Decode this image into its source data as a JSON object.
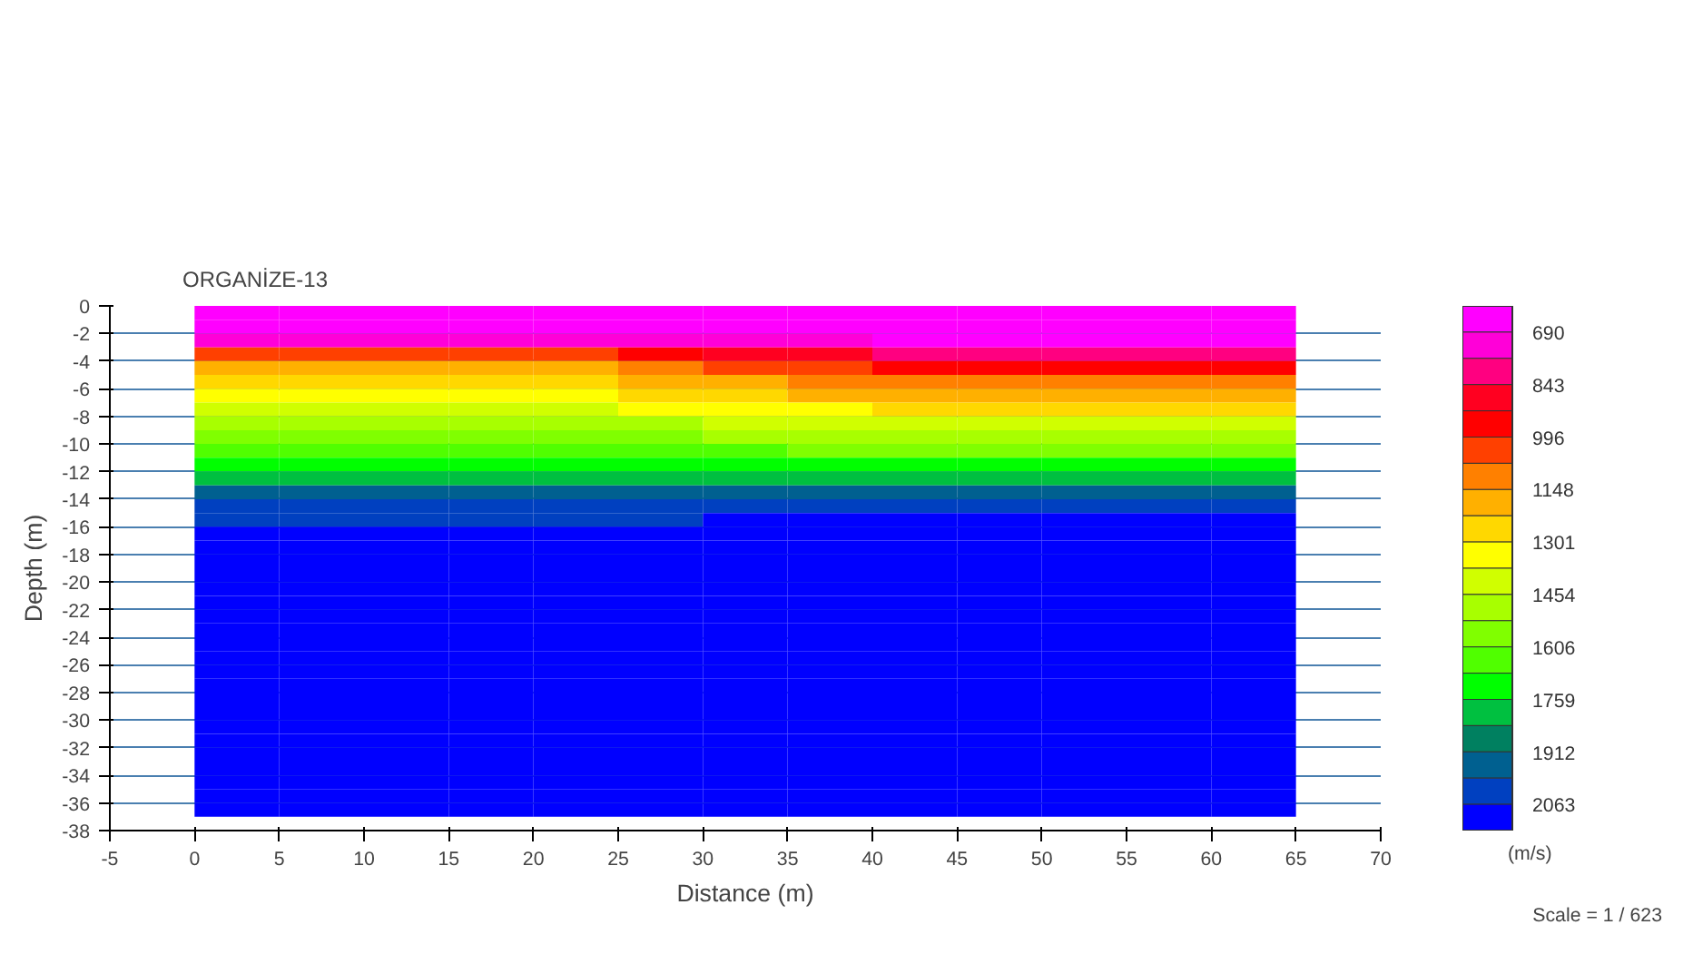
{
  "chart_data": {
    "type": "heatmap",
    "title": "ORGANİZE-13",
    "xlabel": "Distance (m)",
    "ylabel": "Depth (m)",
    "clabel": "(m/s)",
    "annotations": [
      "Scale = 1 / 623"
    ],
    "x": [
      2.5,
      7.5,
      12.5,
      17.5,
      22.5,
      27.5,
      32.5,
      37.5,
      42.5,
      47.5,
      52.5,
      57.5,
      62.5
    ],
    "y": [
      -0.5,
      -1.5,
      -2.5,
      -3.5,
      -4.5,
      -5.5,
      -6.5,
      -7.5,
      -8.5,
      -9.5,
      -10.5,
      -11.5,
      -12.5,
      -13.5,
      -14.5,
      -15.5,
      -16.5,
      -17.5,
      -18.5,
      -19.5,
      -20.5,
      -21.5,
      -22.5,
      -23.5,
      -24.5,
      -25.5,
      -26.5,
      -27.5,
      -28.5,
      -29.5,
      -30.5,
      -31.5,
      -32.5,
      -33.5,
      -34.5,
      -35.5,
      -36.5
    ],
    "cells": [
      [
        650,
        650,
        650,
        650,
        650,
        650,
        650,
        650,
        650,
        650,
        650,
        650,
        650
      ],
      [
        660,
        660,
        660,
        660,
        660,
        658,
        655,
        653,
        650,
        650,
        650,
        650,
        650
      ],
      [
        750,
        750,
        750,
        750,
        750,
        733,
        715,
        698,
        680,
        680,
        680,
        680,
        680
      ],
      [
        1000,
        1000,
        1000,
        1000,
        1000,
        950,
        900,
        850,
        800,
        800,
        800,
        800,
        800
      ],
      [
        1150,
        1150,
        1150,
        1150,
        1150,
        1100,
        1050,
        1000,
        950,
        950,
        950,
        950,
        950
      ],
      [
        1250,
        1250,
        1250,
        1250,
        1250,
        1208,
        1165,
        1123,
        1080,
        1080,
        1080,
        1080,
        1080
      ],
      [
        1330,
        1330,
        1330,
        1330,
        1330,
        1293,
        1255,
        1218,
        1180,
        1180,
        1180,
        1180,
        1180
      ],
      [
        1400,
        1400,
        1400,
        1400,
        1400,
        1373,
        1345,
        1318,
        1290,
        1290,
        1290,
        1290,
        1290
      ],
      [
        1470,
        1470,
        1470,
        1470,
        1470,
        1453,
        1435,
        1418,
        1400,
        1400,
        1400,
        1400,
        1400
      ],
      [
        1540,
        1540,
        1540,
        1540,
        1540,
        1530,
        1520,
        1510,
        1500,
        1500,
        1500,
        1500,
        1500
      ],
      [
        1620,
        1620,
        1620,
        1620,
        1620,
        1615,
        1610,
        1605,
        1600,
        1600,
        1600,
        1600,
        1600
      ],
      [
        1700,
        1700,
        1700,
        1700,
        1700,
        1700,
        1700,
        1700,
        1700,
        1700,
        1700,
        1700,
        1700
      ],
      [
        1830,
        1830,
        1830,
        1830,
        1830,
        1823,
        1815,
        1808,
        1800,
        1800,
        1800,
        1800,
        1800
      ],
      [
        1950,
        1950,
        1950,
        1950,
        1950,
        1945,
        1940,
        1935,
        1930,
        1930,
        1930,
        1930,
        1930
      ],
      [
        2020,
        2020,
        2020,
        2020,
        2020,
        2020,
        2020,
        2020,
        2020,
        2020,
        2020,
        2020,
        2020
      ],
      [
        2040,
        2040,
        2040,
        2040,
        2040,
        2055,
        2070,
        2085,
        2100,
        2100,
        2100,
        2100,
        2100
      ],
      [
        2120,
        2120,
        2120,
        2120,
        2120,
        2120,
        2120,
        2120,
        2120,
        2120,
        2120,
        2120,
        2120
      ],
      [
        2120,
        2120,
        2120,
        2120,
        2120,
        2120,
        2120,
        2120,
        2120,
        2120,
        2120,
        2120,
        2120
      ],
      [
        2120,
        2120,
        2120,
        2120,
        2120,
        2120,
        2120,
        2120,
        2120,
        2120,
        2120,
        2120,
        2120
      ],
      [
        2120,
        2120,
        2120,
        2120,
        2120,
        2120,
        2120,
        2120,
        2120,
        2120,
        2120,
        2120,
        2120
      ],
      [
        2120,
        2120,
        2120,
        2120,
        2120,
        2120,
        2120,
        2120,
        2120,
        2120,
        2120,
        2120,
        2120
      ],
      [
        2120,
        2120,
        2120,
        2120,
        2120,
        2120,
        2120,
        2120,
        2120,
        2120,
        2120,
        2120,
        2120
      ],
      [
        2120,
        2120,
        2120,
        2120,
        2120,
        2120,
        2120,
        2120,
        2120,
        2120,
        2120,
        2120,
        2120
      ],
      [
        2120,
        2120,
        2120,
        2120,
        2120,
        2120,
        2120,
        2120,
        2120,
        2120,
        2120,
        2120,
        2120
      ],
      [
        2120,
        2120,
        2120,
        2120,
        2120,
        2120,
        2120,
        2120,
        2120,
        2120,
        2120,
        2120,
        2120
      ],
      [
        2120,
        2120,
        2120,
        2120,
        2120,
        2120,
        2120,
        2120,
        2120,
        2120,
        2120,
        2120,
        2120
      ],
      [
        2120,
        2120,
        2120,
        2120,
        2120,
        2120,
        2120,
        2120,
        2120,
        2120,
        2120,
        2120,
        2120
      ],
      [
        2120,
        2120,
        2120,
        2120,
        2120,
        2120,
        2120,
        2120,
        2120,
        2120,
        2120,
        2120,
        2120
      ],
      [
        2120,
        2120,
        2120,
        2120,
        2120,
        2120,
        2120,
        2120,
        2120,
        2120,
        2120,
        2120,
        2120
      ],
      [
        2120,
        2120,
        2120,
        2120,
        2120,
        2120,
        2120,
        2120,
        2120,
        2120,
        2120,
        2120,
        2120
      ],
      [
        2120,
        2120,
        2120,
        2120,
        2120,
        2120,
        2120,
        2120,
        2120,
        2120,
        2120,
        2120,
        2120
      ],
      [
        2120,
        2120,
        2120,
        2120,
        2120,
        2120,
        2120,
        2120,
        2120,
        2120,
        2120,
        2120,
        2120
      ],
      [
        2120,
        2120,
        2120,
        2120,
        2120,
        2120,
        2120,
        2120,
        2120,
        2120,
        2120,
        2120,
        2120
      ],
      [
        2120,
        2120,
        2120,
        2120,
        2120,
        2120,
        2120,
        2120,
        2120,
        2120,
        2120,
        2120,
        2120
      ],
      [
        2120,
        2120,
        2120,
        2120,
        2120,
        2120,
        2120,
        2120,
        2120,
        2120,
        2120,
        2120,
        2120
      ],
      [
        2120,
        2120,
        2120,
        2120,
        2120,
        2120,
        2120,
        2120,
        2120,
        2120,
        2120,
        2120,
        2120
      ],
      [
        2120,
        2120,
        2120,
        2120,
        2120,
        2120,
        2120,
        2120,
        2120,
        2120,
        2120,
        2120,
        2120
      ]
    ],
    "colors": [
      "#ff00ff",
      "#ff00d8",
      "#ff0080",
      "#ff0020",
      "#ff0000",
      "#ff4000",
      "#ff8000",
      "#ffb000",
      "#ffd800",
      "#ffff00",
      "#d0ff00",
      "#a8ff00",
      "#80ff00",
      "#50ff00",
      "#00ff00",
      "#00c040",
      "#008060",
      "#006090",
      "#0040c0",
      "#0000ff"
    ],
    "clim": [
      614,
      2139
    ],
    "cticks": [
      690,
      843,
      996,
      1148,
      1301,
      1454,
      1606,
      1759,
      1912,
      2063
    ],
    "xlim": [
      -5,
      70
    ],
    "xticks": [
      -5,
      0,
      5,
      10,
      15,
      20,
      25,
      30,
      35,
      40,
      45,
      50,
      55,
      60,
      65,
      70
    ],
    "ylim": [
      -38,
      0
    ],
    "yticks": [
      0,
      -2,
      -4,
      -6,
      -8,
      -10,
      -12,
      -14,
      -16,
      -18,
      -20,
      -22,
      -24,
      -26,
      -28,
      -30,
      -32,
      -34,
      -36,
      -38
    ],
    "grid": "y"
  }
}
